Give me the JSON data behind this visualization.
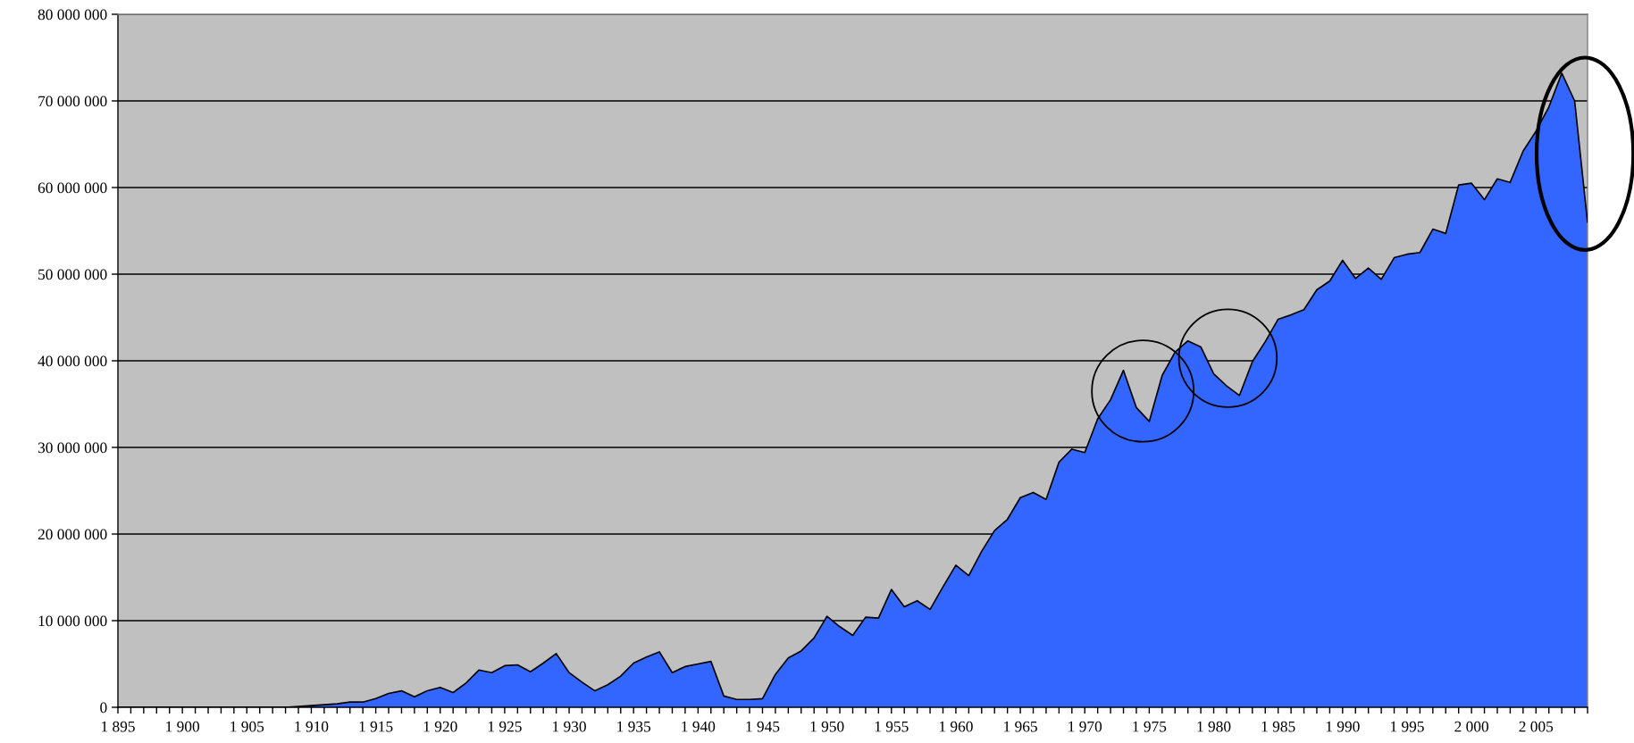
{
  "chart_data": {
    "type": "area",
    "x": [
      1895,
      1896,
      1897,
      1898,
      1899,
      1900,
      1901,
      1902,
      1903,
      1904,
      1905,
      1906,
      1907,
      1908,
      1909,
      1910,
      1911,
      1912,
      1913,
      1914,
      1915,
      1916,
      1917,
      1918,
      1919,
      1920,
      1921,
      1922,
      1923,
      1924,
      1925,
      1926,
      1927,
      1928,
      1929,
      1930,
      1931,
      1932,
      1933,
      1934,
      1935,
      1936,
      1937,
      1938,
      1939,
      1940,
      1941,
      1942,
      1943,
      1944,
      1945,
      1946,
      1947,
      1948,
      1949,
      1950,
      1951,
      1952,
      1953,
      1954,
      1955,
      1956,
      1957,
      1958,
      1959,
      1960,
      1961,
      1962,
      1963,
      1964,
      1965,
      1966,
      1967,
      1968,
      1969,
      1970,
      1971,
      1972,
      1973,
      1974,
      1975,
      1976,
      1977,
      1978,
      1979,
      1980,
      1981,
      1982,
      1983,
      1984,
      1985,
      1986,
      1987,
      1988,
      1989,
      1990,
      1991,
      1992,
      1993,
      1994,
      1995,
      1996,
      1997,
      1998,
      1999,
      2000,
      2001,
      2002,
      2003,
      2004,
      2005,
      2006,
      2007,
      2008,
      2009
    ],
    "series": [
      {
        "color": "#3366ff",
        "values": [
          0,
          0,
          0,
          0,
          0,
          0,
          0,
          0,
          0,
          0,
          0,
          0,
          0,
          0,
          100000,
          200000,
          300000,
          400000,
          600000,
          600000,
          1000000,
          1600000,
          1900000,
          1200000,
          1900000,
          2300000,
          1700000,
          2800000,
          4300000,
          4000000,
          4800000,
          4900000,
          4100000,
          5100000,
          6200000,
          4000000,
          2900000,
          1900000,
          2600000,
          3600000,
          5100000,
          5800000,
          6400000,
          4000000,
          4700000,
          5000000,
          5300000,
          1300000,
          900000,
          900000,
          1000000,
          3800000,
          5700000,
          6500000,
          8000000,
          10500000,
          9300000,
          8300000,
          10400000,
          10300000,
          13600000,
          11600000,
          12300000,
          11300000,
          13900000,
          16400000,
          15200000,
          18000000,
          20400000,
          21700000,
          24200000,
          24800000,
          24000000,
          28300000,
          29800000,
          29400000,
          33300000,
          35500000,
          38900000,
          34600000,
          33000000,
          38300000,
          41000000,
          42300000,
          41600000,
          38500000,
          37100000,
          36000000,
          39900000,
          42200000,
          44800000,
          45300000,
          45900000,
          48200000,
          49200000,
          51600000,
          49500000,
          50700000,
          49400000,
          51900000,
          52300000,
          52500000,
          55200000,
          54700000,
          60300000,
          60500000,
          58600000,
          61000000,
          60600000,
          64200000,
          66500000,
          69300000,
          73200000,
          70000000,
          56000000
        ]
      }
    ],
    "xlim": [
      1895,
      2009
    ],
    "xticks": [
      {
        "value": 1895,
        "label": "1 895"
      },
      {
        "value": 1896,
        "label": null
      },
      {
        "value": 1897,
        "label": null
      },
      {
        "value": 1898,
        "label": null
      },
      {
        "value": 1899,
        "label": null
      },
      {
        "value": 1900,
        "label": "1 900"
      },
      {
        "value": 1901,
        "label": null
      },
      {
        "value": 1902,
        "label": null
      },
      {
        "value": 1903,
        "label": null
      },
      {
        "value": 1904,
        "label": null
      },
      {
        "value": 1905,
        "label": "1 905"
      },
      {
        "value": 1906,
        "label": null
      },
      {
        "value": 1907,
        "label": null
      },
      {
        "value": 1908,
        "label": null
      },
      {
        "value": 1909,
        "label": null
      },
      {
        "value": 1910,
        "label": "1 910"
      },
      {
        "value": 1911,
        "label": null
      },
      {
        "value": 1912,
        "label": null
      },
      {
        "value": 1913,
        "label": null
      },
      {
        "value": 1914,
        "label": null
      },
      {
        "value": 1915,
        "label": "1 915"
      },
      {
        "value": 1916,
        "label": null
      },
      {
        "value": 1917,
        "label": null
      },
      {
        "value": 1918,
        "label": null
      },
      {
        "value": 1919,
        "label": null
      },
      {
        "value": 1920,
        "label": "1 920"
      },
      {
        "value": 1921,
        "label": null
      },
      {
        "value": 1922,
        "label": null
      },
      {
        "value": 1923,
        "label": null
      },
      {
        "value": 1924,
        "label": null
      },
      {
        "value": 1925,
        "label": "1 925"
      },
      {
        "value": 1926,
        "label": null
      },
      {
        "value": 1927,
        "label": null
      },
      {
        "value": 1928,
        "label": null
      },
      {
        "value": 1929,
        "label": null
      },
      {
        "value": 1930,
        "label": "1 930"
      },
      {
        "value": 1931,
        "label": null
      },
      {
        "value": 1932,
        "label": null
      },
      {
        "value": 1933,
        "label": null
      },
      {
        "value": 1934,
        "label": null
      },
      {
        "value": 1935,
        "label": "1 935"
      },
      {
        "value": 1936,
        "label": null
      },
      {
        "value": 1937,
        "label": null
      },
      {
        "value": 1938,
        "label": null
      },
      {
        "value": 1939,
        "label": null
      },
      {
        "value": 1940,
        "label": "1 940"
      },
      {
        "value": 1941,
        "label": null
      },
      {
        "value": 1942,
        "label": null
      },
      {
        "value": 1943,
        "label": null
      },
      {
        "value": 1944,
        "label": null
      },
      {
        "value": 1945,
        "label": "1 945"
      },
      {
        "value": 1946,
        "label": null
      },
      {
        "value": 1947,
        "label": null
      },
      {
        "value": 1948,
        "label": null
      },
      {
        "value": 1949,
        "label": null
      },
      {
        "value": 1950,
        "label": "1 950"
      },
      {
        "value": 1951,
        "label": null
      },
      {
        "value": 1952,
        "label": null
      },
      {
        "value": 1953,
        "label": null
      },
      {
        "value": 1954,
        "label": null
      },
      {
        "value": 1955,
        "label": "1 955"
      },
      {
        "value": 1956,
        "label": null
      },
      {
        "value": 1957,
        "label": null
      },
      {
        "value": 1958,
        "label": null
      },
      {
        "value": 1959,
        "label": null
      },
      {
        "value": 1960,
        "label": "1 960"
      },
      {
        "value": 1961,
        "label": null
      },
      {
        "value": 1962,
        "label": null
      },
      {
        "value": 1963,
        "label": null
      },
      {
        "value": 1964,
        "label": null
      },
      {
        "value": 1965,
        "label": "1 965"
      },
      {
        "value": 1966,
        "label": null
      },
      {
        "value": 1967,
        "label": null
      },
      {
        "value": 1968,
        "label": null
      },
      {
        "value": 1969,
        "label": null
      },
      {
        "value": 1970,
        "label": "1 970"
      },
      {
        "value": 1971,
        "label": null
      },
      {
        "value": 1972,
        "label": null
      },
      {
        "value": 1973,
        "label": null
      },
      {
        "value": 1974,
        "label": null
      },
      {
        "value": 1975,
        "label": "1 975"
      },
      {
        "value": 1976,
        "label": null
      },
      {
        "value": 1977,
        "label": null
      },
      {
        "value": 1978,
        "label": null
      },
      {
        "value": 1979,
        "label": null
      },
      {
        "value": 1980,
        "label": "1 980"
      },
      {
        "value": 1981,
        "label": null
      },
      {
        "value": 1982,
        "label": null
      },
      {
        "value": 1983,
        "label": null
      },
      {
        "value": 1984,
        "label": null
      },
      {
        "value": 1985,
        "label": "1 985"
      },
      {
        "value": 1986,
        "label": null
      },
      {
        "value": 1987,
        "label": null
      },
      {
        "value": 1988,
        "label": null
      },
      {
        "value": 1989,
        "label": null
      },
      {
        "value": 1990,
        "label": "1 990"
      },
      {
        "value": 1991,
        "label": null
      },
      {
        "value": 1992,
        "label": null
      },
      {
        "value": 1993,
        "label": null
      },
      {
        "value": 1994,
        "label": null
      },
      {
        "value": 1995,
        "label": "1 995"
      },
      {
        "value": 1996,
        "label": null
      },
      {
        "value": 1997,
        "label": null
      },
      {
        "value": 1998,
        "label": null
      },
      {
        "value": 1999,
        "label": null
      },
      {
        "value": 2000,
        "label": "2 000"
      },
      {
        "value": 2001,
        "label": null
      },
      {
        "value": 2002,
        "label": null
      },
      {
        "value": 2003,
        "label": null
      },
      {
        "value": 2004,
        "label": null
      },
      {
        "value": 2005,
        "label": "2 005"
      },
      {
        "value": 2006,
        "label": null
      },
      {
        "value": 2007,
        "label": null
      },
      {
        "value": 2008,
        "label": null
      },
      {
        "value": 2009,
        "label": null
      }
    ],
    "ylim": [
      0,
      80000000
    ],
    "yticks": [
      {
        "value": 0,
        "label": "0"
      },
      {
        "value": 10000000,
        "label": "10 000 000"
      },
      {
        "value": 20000000,
        "label": "20 000 000"
      },
      {
        "value": 30000000,
        "label": "30 000 000"
      },
      {
        "value": 40000000,
        "label": "40 000 000"
      },
      {
        "value": 50000000,
        "label": "50 000 000"
      },
      {
        "value": 60000000,
        "label": "60 000 000"
      },
      {
        "value": 70000000,
        "label": "70 000 000"
      },
      {
        "value": 80000000,
        "label": "80 000 000"
      }
    ],
    "grid": "y"
  }
}
